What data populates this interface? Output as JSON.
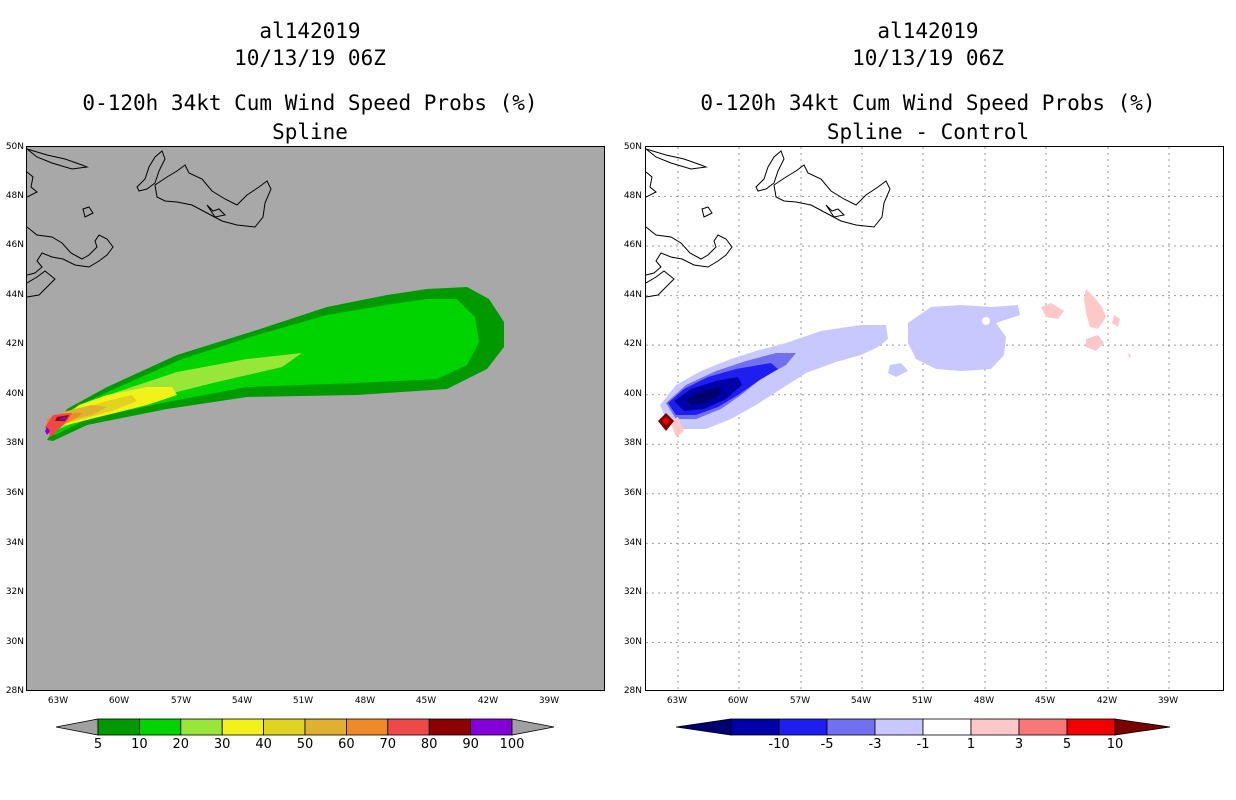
{
  "left": {
    "title1": "al142019",
    "title2": "10/13/19 06Z",
    "title3": "0-120h 34kt Cum Wind Speed Probs (%)",
    "title4": "Spline",
    "colorbar": {
      "labels": [
        "5",
        "10",
        "20",
        "30",
        "40",
        "50",
        "60",
        "70",
        "80",
        "90",
        "100"
      ],
      "colors": [
        "#009a00",
        "#00d400",
        "#99e63a",
        "#f2f21a",
        "#e0d322",
        "#e0b030",
        "#ef8a2a",
        "#ef4848",
        "#8c0000",
        "#8400d8"
      ],
      "end_color": "#a0a0a0"
    },
    "background": "#a8a8a8"
  },
  "right": {
    "title1": "al142019",
    "title2": "10/13/19 06Z",
    "title3": "0-120h 34kt Cum Wind Speed Probs (%)",
    "title4": "Spline - Control",
    "colorbar": {
      "labels": [
        "-10",
        "-5",
        "-3",
        "-1",
        "1",
        "3",
        "5",
        "10"
      ],
      "colors": [
        "#0000a8",
        "#1e1ef0",
        "#7070f0",
        "#c8c8ff",
        "#ffffff",
        "#ffc8c8",
        "#f87878",
        "#f00000"
      ],
      "left_color": "#000070",
      "right_color": "#7a0000"
    }
  },
  "axes": {
    "lat_labels": [
      "50N",
      "48N",
      "46N",
      "44N",
      "42N",
      "40N",
      "38N",
      "36N",
      "34N",
      "32N",
      "30N",
      "28N"
    ],
    "lon_labels": [
      "63W",
      "60W",
      "57W",
      "54W",
      "51W",
      "48W",
      "45W",
      "42W",
      "39W"
    ]
  }
}
